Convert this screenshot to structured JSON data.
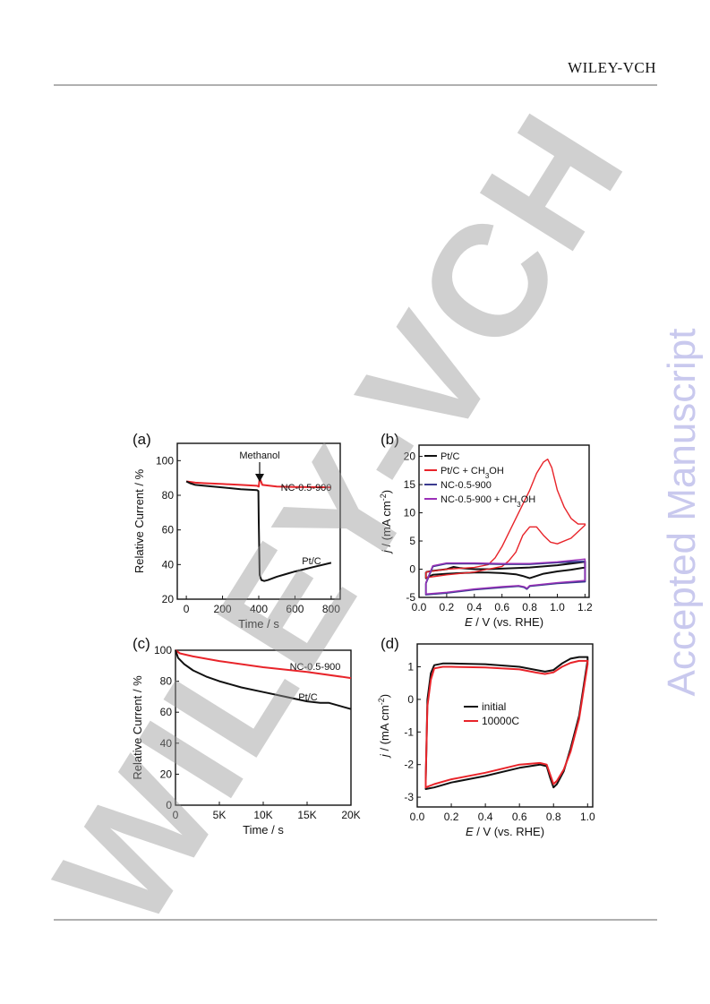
{
  "header": {
    "publisher": "WILEY-VCH"
  },
  "watermarks": {
    "side": "Accepted Manuscript",
    "diagonal": "WILEY-VCH"
  },
  "figure": {
    "panels": [
      {
        "label": "(a)",
        "annotation": "Methanol"
      },
      {
        "label": "(b)"
      },
      {
        "label": "(c)"
      },
      {
        "label": "(d)"
      }
    ]
  },
  "chart_data": [
    {
      "panel": "(a)",
      "type": "line",
      "xlabel": "Time / s",
      "ylabel": "Relative Current / %",
      "xlim": [
        -50,
        850
      ],
      "ylim": [
        20,
        110
      ],
      "xticks": [
        "0",
        "200",
        "400",
        "600",
        "800"
      ],
      "yticks": [
        "20",
        "40",
        "60",
        "80",
        "100"
      ],
      "annotations": [
        {
          "text": "Methanol",
          "x": 400
        }
      ],
      "series": [
        {
          "name": "NC-0.5-900",
          "color": "#e8242a",
          "x": [
            0,
            50,
            100,
            200,
            300,
            390,
            400,
            405,
            420,
            500,
            600,
            700,
            800
          ],
          "y": [
            88,
            87.3,
            87,
            86.5,
            86,
            85.5,
            85,
            90,
            86,
            85,
            84.8,
            84.7,
            84.6
          ]
        },
        {
          "name": "Pt/C",
          "color": "#111111",
          "x": [
            0,
            20,
            50,
            100,
            200,
            300,
            390,
            398,
            400,
            405,
            415,
            430,
            450,
            500,
            550,
            600,
            700,
            800
          ],
          "y": [
            88,
            87,
            86,
            85.5,
            84.5,
            83.5,
            83,
            82.5,
            65,
            34,
            31,
            30.5,
            31,
            33,
            34.5,
            36,
            38.5,
            41
          ]
        }
      ]
    },
    {
      "panel": "(b)",
      "type": "line",
      "xlabel": "E / V (vs. RHE)",
      "ylabel": "j / (mA cm-2)",
      "xlim": [
        0,
        1.23
      ],
      "ylim": [
        -5,
        22
      ],
      "xticks": [
        "0.0",
        "0.2",
        "0.4",
        "0.6",
        "0.8",
        "1.0",
        "1.2"
      ],
      "yticks": [
        "-5",
        "0",
        "5",
        "10",
        "15",
        "20"
      ],
      "legend": [
        "Pt/C",
        "Pt/C + CH3OH",
        "NC-0.5-900",
        "NC-0.5-900 + CH3OH"
      ],
      "legend_position": "top-left",
      "series": [
        {
          "name": "Pt/C",
          "color": "#111111",
          "x": [
            0.05,
            0.1,
            0.2,
            0.25,
            0.3,
            0.4,
            0.5,
            0.6,
            0.7,
            0.8,
            0.9,
            1.0,
            1.1,
            1.2,
            1.2,
            1.1,
            1.0,
            0.9,
            0.85,
            0.8,
            0.75,
            0.7,
            0.6,
            0.5,
            0.4,
            0.3,
            0.2,
            0.1,
            0.05,
            0.05
          ],
          "y": [
            -0.5,
            -0.3,
            0,
            0.4,
            0.2,
            0,
            0,
            0.1,
            0.2,
            0.3,
            0.5,
            0.7,
            1,
            1.3,
            0.3,
            -0.1,
            -0.4,
            -0.8,
            -1.2,
            -1.6,
            -1.2,
            -0.9,
            -0.7,
            -0.6,
            -0.6,
            -0.7,
            -0.8,
            -1,
            -1.6,
            -0.5
          ]
        },
        {
          "name": "Pt/C + CH3OH",
          "color": "#e8242a",
          "x": [
            0.05,
            0.2,
            0.4,
            0.5,
            0.55,
            0.6,
            0.7,
            0.8,
            0.85,
            0.9,
            0.93,
            0.96,
            1.0,
            1.05,
            1.1,
            1.15,
            1.2,
            1.2,
            1.1,
            1.0,
            0.95,
            0.9,
            0.85,
            0.8,
            0.75,
            0.7,
            0.65,
            0.6,
            0.5,
            0.4,
            0.2,
            0.05,
            0.05
          ],
          "y": [
            -0.5,
            0,
            0.3,
            0.8,
            2,
            4,
            9,
            14,
            17,
            19,
            19.5,
            18,
            14,
            11,
            9,
            8,
            8,
            7.8,
            5.5,
            4.5,
            4.8,
            6,
            7.5,
            7.5,
            6,
            3,
            1.5,
            0.5,
            0,
            -0.5,
            -1,
            -1.5,
            -0.5
          ]
        },
        {
          "name": "NC-0.5-900",
          "color": "#3b3b8f",
          "x": [
            0.05,
            0.1,
            0.2,
            0.4,
            0.6,
            0.8,
            1.0,
            1.2,
            1.2,
            1.0,
            0.8,
            0.78,
            0.76,
            0.72,
            0.6,
            0.4,
            0.2,
            0.05,
            0.05
          ],
          "y": [
            -2.5,
            0.5,
            1,
            1,
            0.9,
            0.9,
            1.2,
            1.4,
            -2.2,
            -2.5,
            -3,
            -3.5,
            -3.2,
            -3,
            -3.2,
            -3.6,
            -4.2,
            -4.5,
            -2.5
          ]
        },
        {
          "name": "NC-0.5-900 + CH3OH",
          "color": "#9b30b8",
          "x": [
            0.05,
            0.1,
            0.2,
            0.4,
            0.6,
            0.8,
            1.0,
            1.2,
            1.2,
            1.0,
            0.8,
            0.78,
            0.76,
            0.72,
            0.6,
            0.4,
            0.2,
            0.05,
            0.05
          ],
          "y": [
            -2.4,
            0.6,
            1.1,
            1.1,
            1,
            1,
            1.3,
            1.8,
            -2,
            -2.4,
            -2.9,
            -3.4,
            -3.1,
            -2.9,
            -3.1,
            -3.5,
            -4.1,
            -4.4,
            -2.4
          ]
        }
      ]
    },
    {
      "panel": "(c)",
      "type": "line",
      "xlabel": "Time / s",
      "ylabel": "Relative Current / %",
      "xlim": [
        0,
        20000
      ],
      "ylim": [
        0,
        100
      ],
      "xticks": [
        "0",
        "5K",
        "10K",
        "15K",
        "20K"
      ],
      "yticks": [
        "0",
        "20",
        "40",
        "60",
        "80",
        "100"
      ],
      "series": [
        {
          "name": "NC-0.5-900",
          "color": "#e8242a",
          "x": [
            0,
            500,
            2000,
            5000,
            10000,
            15000,
            20000
          ],
          "y": [
            100,
            98,
            96,
            93,
            89,
            86,
            82
          ]
        },
        {
          "name": "Pt/C",
          "color": "#111111",
          "x": [
            0,
            300,
            1000,
            2000,
            3500,
            5000,
            7500,
            10000,
            12500,
            15000,
            16500,
            17500,
            20000
          ],
          "y": [
            100,
            95,
            91,
            87,
            83,
            80,
            76,
            73,
            70,
            67,
            66,
            66,
            62
          ]
        }
      ]
    },
    {
      "panel": "(d)",
      "type": "line",
      "xlabel": "E / V (vs. RHE)",
      "ylabel": "j / (mA cm-2)",
      "xlim": [
        0,
        1.03
      ],
      "ylim": [
        -3.3,
        1.7
      ],
      "xticks": [
        "0.0",
        "0.2",
        "0.4",
        "0.6",
        "0.8",
        "1.0"
      ],
      "yticks": [
        "-3",
        "-2",
        "-1",
        "0",
        "1"
      ],
      "legend": [
        "initial",
        "10000C"
      ],
      "legend_position": "center",
      "series": [
        {
          "name": "initial",
          "color": "#111111",
          "x": [
            0.05,
            0.06,
            0.08,
            0.1,
            0.15,
            0.2,
            0.4,
            0.6,
            0.7,
            0.75,
            0.8,
            0.85,
            0.9,
            0.95,
            1.0,
            1.0,
            0.95,
            0.9,
            0.86,
            0.82,
            0.8,
            0.78,
            0.76,
            0.72,
            0.6,
            0.4,
            0.2,
            0.1,
            0.05,
            0.05
          ],
          "y": [
            -2.5,
            0,
            0.8,
            1.05,
            1.1,
            1.1,
            1.08,
            1,
            0.9,
            0.85,
            0.9,
            1.1,
            1.25,
            1.3,
            1.3,
            1.2,
            -0.5,
            -1.5,
            -2.2,
            -2.6,
            -2.7,
            -2.4,
            -2.05,
            -2,
            -2.1,
            -2.35,
            -2.55,
            -2.7,
            -2.75,
            -2.5
          ]
        },
        {
          "name": "10000C",
          "color": "#e8242a",
          "x": [
            0.05,
            0.06,
            0.08,
            0.1,
            0.15,
            0.2,
            0.4,
            0.6,
            0.7,
            0.75,
            0.8,
            0.85,
            0.9,
            0.95,
            1.0,
            1.0,
            0.95,
            0.9,
            0.86,
            0.82,
            0.8,
            0.78,
            0.76,
            0.72,
            0.6,
            0.4,
            0.2,
            0.1,
            0.05,
            0.05
          ],
          "y": [
            -2.4,
            -0.2,
            0.6,
            0.95,
            1.0,
            1.0,
            0.98,
            0.92,
            0.82,
            0.78,
            0.83,
            1.0,
            1.12,
            1.18,
            1.18,
            1.08,
            -0.6,
            -1.6,
            -2.15,
            -2.5,
            -2.6,
            -2.3,
            -2.0,
            -1.95,
            -2.0,
            -2.25,
            -2.45,
            -2.6,
            -2.7,
            -2.4
          ]
        }
      ]
    }
  ]
}
